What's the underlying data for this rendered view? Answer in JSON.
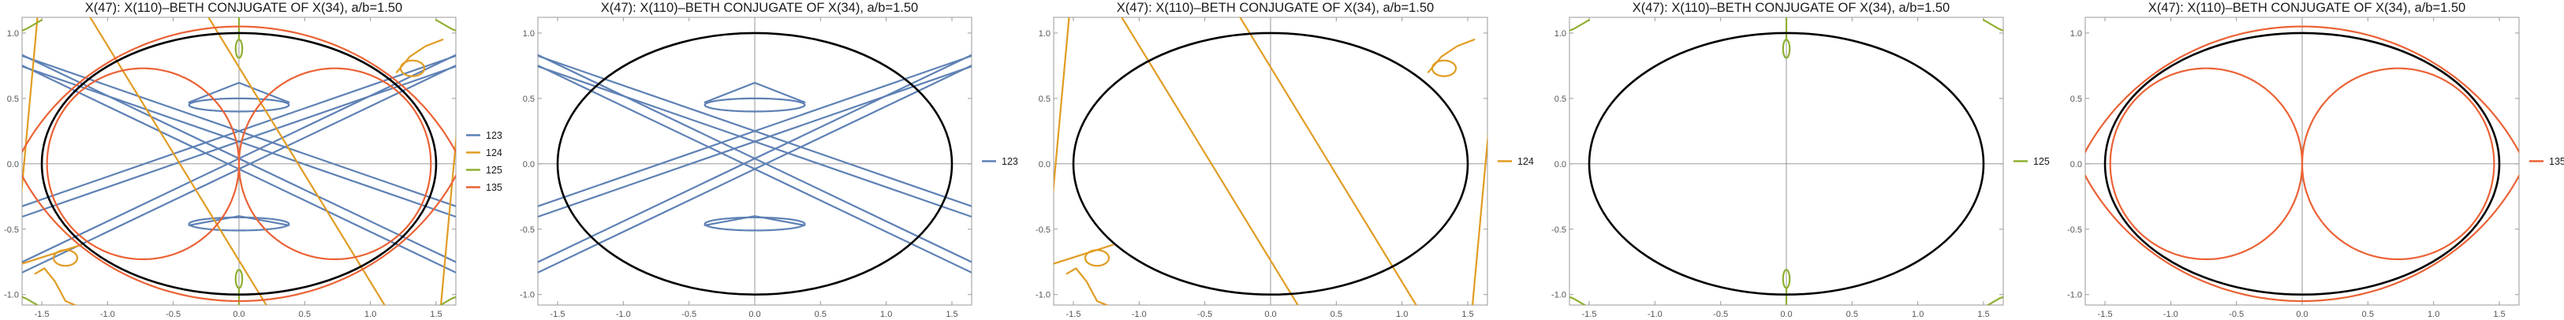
{
  "colors": {
    "123": "#5e81b5",
    "124": "#e19c24",
    "125": "#8fb032",
    "135": "#eb6235",
    "ellipse": "#000000"
  },
  "chart_data": [
    {
      "type": "line",
      "title": "X(47): X(110)–BETH CONJUGATE OF X(34), a/b=1.50",
      "xlim": [
        -1.65,
        1.65
      ],
      "ylim": [
        -1.08,
        1.12
      ],
      "xticks": [
        "-1.5",
        "-1.0",
        "-0.5",
        "0.0",
        "0.5",
        "1.0",
        "1.5"
      ],
      "yticks": [
        "-1.0",
        "-0.5",
        "0.0",
        "0.5",
        "1.0"
      ],
      "grid": false,
      "legend_position": "right",
      "legend": [
        "123",
        "124",
        "125",
        "135"
      ],
      "series": [
        {
          "name": "123"
        },
        {
          "name": "124"
        },
        {
          "name": "125"
        },
        {
          "name": "135"
        }
      ],
      "ellipse": {
        "a": 1.5,
        "b": 1.0
      }
    },
    {
      "type": "line",
      "title": "X(47): X(110)–BETH CONJUGATE OF X(34), a/b=1.50",
      "xlim": [
        -1.65,
        1.65
      ],
      "ylim": [
        -1.08,
        1.12
      ],
      "xticks": [
        "-1.5",
        "-1.0",
        "-0.5",
        "0.0",
        "0.5",
        "1.0",
        "1.5"
      ],
      "yticks": [
        "-1.0",
        "-0.5",
        "0.0",
        "0.5",
        "1.0"
      ],
      "grid": false,
      "legend_position": "right",
      "legend": [
        "123"
      ],
      "series": [
        {
          "name": "123"
        }
      ],
      "ellipse": {
        "a": 1.5,
        "b": 1.0
      }
    },
    {
      "type": "line",
      "title": "X(47): X(110)–BETH CONJUGATE OF X(34), a/b=1.50",
      "xlim": [
        -1.65,
        1.65
      ],
      "ylim": [
        -1.08,
        1.12
      ],
      "xticks": [
        "-1.5",
        "-1.0",
        "-0.5",
        "0.0",
        "0.5",
        "1.0",
        "1.5"
      ],
      "yticks": [
        "-1.0",
        "-0.5",
        "0.0",
        "0.5",
        "1.0"
      ],
      "grid": false,
      "legend_position": "right",
      "legend": [
        "124"
      ],
      "series": [
        {
          "name": "124"
        }
      ],
      "ellipse": {
        "a": 1.5,
        "b": 1.0
      }
    },
    {
      "type": "line",
      "title": "X(47): X(110)–BETH CONJUGATE OF X(34), a/b=1.50",
      "xlim": [
        -1.65,
        1.65
      ],
      "ylim": [
        -1.08,
        1.12
      ],
      "xticks": [
        "-1.5",
        "-1.0",
        "-0.5",
        "0.0",
        "0.5",
        "1.0",
        "1.5"
      ],
      "yticks": [
        "-1.0",
        "-0.5",
        "0.0",
        "0.5",
        "1.0"
      ],
      "grid": false,
      "legend_position": "right",
      "legend": [
        "125"
      ],
      "series": [
        {
          "name": "125"
        }
      ],
      "ellipse": {
        "a": 1.5,
        "b": 1.0
      }
    },
    {
      "type": "line",
      "title": "X(47): X(110)–BETH CONJUGATE OF X(34), a/b=1.50",
      "xlim": [
        -1.65,
        1.65
      ],
      "ylim": [
        -1.08,
        1.12
      ],
      "xticks": [
        "-1.5",
        "-1.0",
        "-0.5",
        "0.0",
        "0.5",
        "1.0",
        "1.5"
      ],
      "yticks": [
        "-1.0",
        "-0.5",
        "0.0",
        "0.5",
        "1.0"
      ],
      "grid": false,
      "legend_position": "right",
      "legend": [
        "135"
      ],
      "series": [
        {
          "name": "135"
        }
      ],
      "ellipse": {
        "a": 1.5,
        "b": 1.0
      }
    }
  ]
}
